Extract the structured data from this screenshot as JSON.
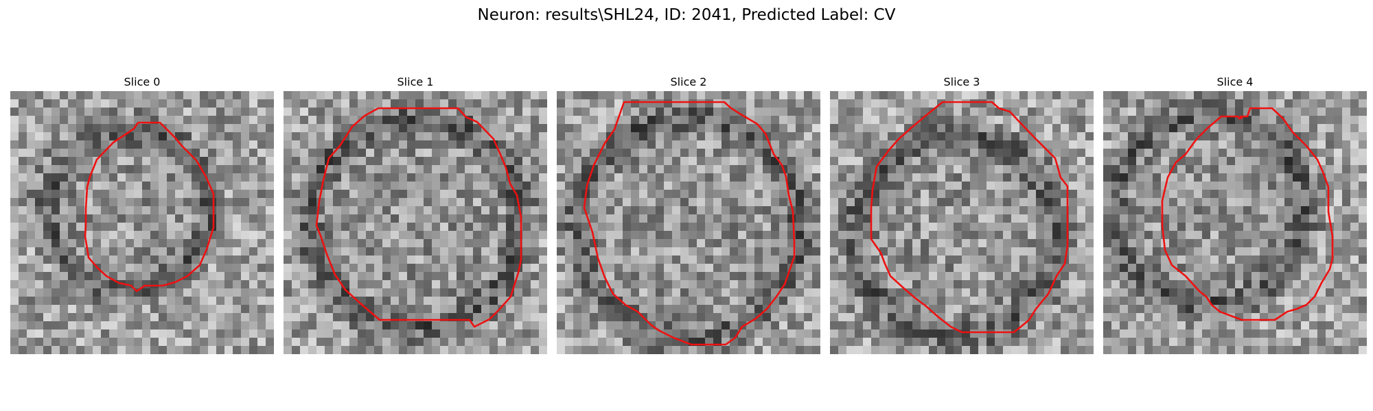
{
  "figure": {
    "title": "Neuron: results\\SHL24, ID: 2041, Predicted Label: CV"
  },
  "panels": [
    {
      "title": "Slice 0"
    },
    {
      "title": "Slice 1"
    },
    {
      "title": "Slice 2"
    },
    {
      "title": "Slice 3"
    },
    {
      "title": "Slice 4"
    }
  ],
  "colors": {
    "background": "#ffffff",
    "contour": "#ee1111",
    "image_colormap": "gray"
  }
}
